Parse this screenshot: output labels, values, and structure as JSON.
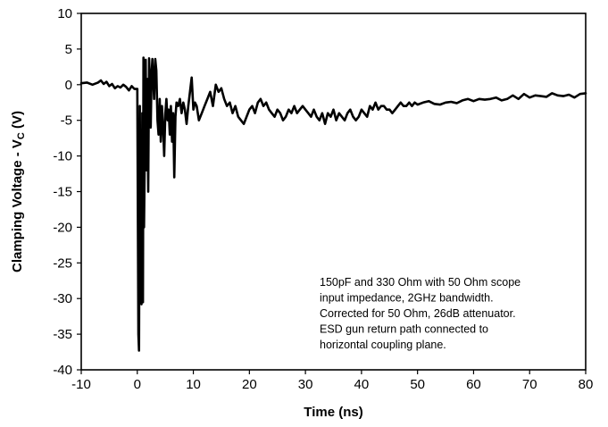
{
  "chart_data": {
    "type": "line",
    "xlabel": "Time (ns)",
    "ylabel": {
      "main": "Clamping Voltage - V",
      "sub": "C",
      "unit": " (V)"
    },
    "xlim": [
      -10,
      80
    ],
    "ylim": [
      -40,
      10
    ],
    "x_ticks": [
      -10,
      0,
      10,
      20,
      30,
      40,
      50,
      60,
      70,
      80
    ],
    "y_ticks": [
      10,
      5,
      0,
      -5,
      -10,
      -15,
      -20,
      -25,
      -30,
      -35,
      -40
    ],
    "grid": false,
    "annotation": [
      "150pF and 330 Ohm with 50 Ohm scope",
      "input impedance, 2GHz bandwidth.",
      "Corrected for 50 Ohm, 26dB attenuator.",
      "ESD gun return path connected to",
      "horizontal coupling plane."
    ],
    "series": [
      {
        "color": "#000000",
        "x": [
          -10,
          -9,
          -8,
          -7,
          -6.5,
          -6,
          -5.5,
          -5,
          -4.5,
          -4,
          -3.5,
          -3,
          -2.5,
          -2,
          -1.5,
          -1,
          -0.5,
          0,
          0.2,
          0.3,
          0.45,
          0.6,
          0.75,
          0.9,
          1.0,
          1.1,
          1.2,
          1.35,
          1.5,
          1.65,
          1.8,
          1.95,
          2.1,
          2.25,
          2.4,
          2.55,
          2.7,
          2.85,
          3.0,
          3.2,
          3.4,
          3.6,
          3.8,
          4.0,
          4.2,
          4.4,
          4.6,
          4.8,
          5.0,
          5.2,
          5.4,
          5.6,
          5.8,
          6.0,
          6.2,
          6.4,
          6.6,
          6.8,
          7.0,
          7.3,
          7.6,
          7.9,
          8.2,
          8.5,
          8.8,
          9.1,
          9.4,
          9.7,
          10.0,
          10.3,
          10.6,
          11.0,
          11.5,
          12.0,
          12.5,
          13.0,
          13.5,
          14.0,
          14.5,
          15.0,
          15.5,
          16.0,
          16.5,
          17.0,
          17.5,
          18.0,
          18.5,
          19.0,
          19.5,
          20.0,
          20.5,
          21.0,
          21.5,
          22.0,
          22.5,
          23.0,
          23.5,
          24.0,
          24.5,
          25.0,
          25.5,
          26.0,
          26.5,
          27.0,
          27.5,
          28.0,
          28.5,
          29.0,
          29.5,
          30.0,
          30.5,
          31.0,
          31.5,
          32.0,
          32.5,
          33.0,
          33.5,
          34.0,
          34.5,
          35.0,
          35.5,
          36.0,
          36.5,
          37.0,
          37.5,
          38.0,
          38.5,
          39.0,
          39.5,
          40.0,
          40.5,
          41.0,
          41.5,
          42.0,
          42.5,
          43.0,
          43.5,
          44.0,
          44.5,
          45.0,
          45.5,
          46.0,
          46.5,
          47.0,
          47.5,
          48.0,
          48.5,
          49.0,
          49.5,
          50.0,
          51.0,
          52.0,
          53.0,
          54.0,
          55.0,
          56.0,
          57.0,
          58.0,
          59.0,
          60.0,
          61.0,
          62.0,
          63.0,
          64.0,
          65.0,
          66.0,
          67.0,
          68.0,
          69.0,
          70.0,
          71.0,
          72.0,
          73.0,
          74.0,
          75.0,
          76.0,
          77.0,
          78.0,
          79.0,
          80.0
        ],
        "y": [
          0.2,
          0.3,
          0.0,
          0.3,
          0.6,
          0.1,
          0.4,
          -0.2,
          0.1,
          -0.5,
          -0.2,
          -0.4,
          0.0,
          -0.3,
          -0.8,
          -0.2,
          -0.6,
          -0.6,
          -35.0,
          -37.3,
          -3.0,
          -29.0,
          -30.8,
          -4.0,
          -30.5,
          3.8,
          -20.0,
          -8.0,
          3.5,
          -12.0,
          0.8,
          -15.0,
          3.7,
          0.5,
          -6.0,
          1.5,
          3.6,
          0.5,
          -2.0,
          3.6,
          2.0,
          -5.0,
          -7.0,
          -2.0,
          -8.0,
          -3.0,
          -6.0,
          -10.0,
          -4.0,
          -2.0,
          -5.0,
          -3.5,
          -7.0,
          -3.0,
          -8.0,
          -4.0,
          -13.0,
          -4.5,
          -2.5,
          -3.0,
          -2.0,
          -4.0,
          -2.5,
          -3.5,
          -5.5,
          -3.0,
          -1.0,
          1.0,
          -3.5,
          -2.5,
          -3.0,
          -5.0,
          -4.0,
          -3.0,
          -2.0,
          -1.0,
          -3.0,
          0.0,
          -1.0,
          -0.5,
          -2.0,
          -3.0,
          -2.5,
          -4.0,
          -3.0,
          -4.5,
          -5.0,
          -5.5,
          -4.5,
          -3.5,
          -3.0,
          -4.0,
          -2.5,
          -2.0,
          -3.0,
          -2.5,
          -3.5,
          -4.0,
          -4.5,
          -3.5,
          -4.0,
          -5.0,
          -4.5,
          -3.5,
          -4.0,
          -3.0,
          -4.0,
          -3.5,
          -3.0,
          -3.5,
          -4.0,
          -4.5,
          -3.5,
          -4.5,
          -5.0,
          -4.0,
          -5.5,
          -4.0,
          -4.5,
          -3.5,
          -5.0,
          -4.0,
          -4.5,
          -5.0,
          -4.0,
          -3.5,
          -4.5,
          -5.0,
          -4.5,
          -3.5,
          -4.0,
          -4.5,
          -3.0,
          -3.5,
          -2.5,
          -3.5,
          -3.0,
          -3.0,
          -3.5,
          -3.5,
          -4.0,
          -3.5,
          -3.0,
          -2.5,
          -3.0,
          -3.0,
          -2.5,
          -3.0,
          -2.5,
          -2.8,
          -2.5,
          -2.3,
          -2.7,
          -2.8,
          -2.5,
          -2.4,
          -2.6,
          -2.2,
          -2.0,
          -2.3,
          -2.0,
          -2.1,
          -2.0,
          -1.8,
          -2.2,
          -2.0,
          -1.5,
          -2.0,
          -1.3,
          -1.8,
          -1.5,
          -1.6,
          -1.7,
          -1.2,
          -1.5,
          -1.6,
          -1.4,
          -1.8,
          -1.3,
          -1.2
        ]
      }
    ]
  }
}
